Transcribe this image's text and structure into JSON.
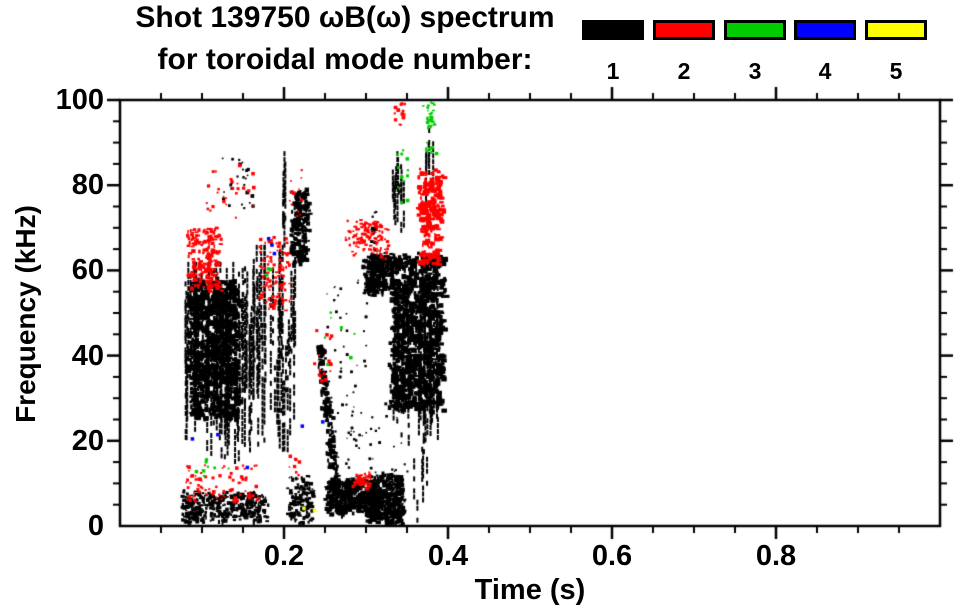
{
  "title": {
    "line1": "Shot 139750 ωB(ω) spectrum",
    "line2": "for toroidal mode number:"
  },
  "legend": {
    "modes": [
      {
        "label": "1",
        "color": "#000000"
      },
      {
        "label": "2",
        "color": "#ff0000"
      },
      {
        "label": "3",
        "color": "#00cc00"
      },
      {
        "label": "4",
        "color": "#0000ff"
      },
      {
        "label": "5",
        "color": "#ffff00"
      }
    ]
  },
  "axes": {
    "x": {
      "label": "Time (s)",
      "min": 0,
      "max": 1.0,
      "tick_values": [
        0.2,
        0.4,
        0.6,
        0.8
      ],
      "tick_labels": [
        "0.2",
        "0.4",
        "0.6",
        "0.8"
      ],
      "minor_interval": 0.05
    },
    "y": {
      "label": "Frequency (kHz)",
      "min": 0,
      "max": 100,
      "tick_values": [
        100,
        80,
        60,
        40,
        20,
        0
      ],
      "tick_labels": [
        "100",
        "80",
        "60",
        "40",
        "20",
        "0"
      ],
      "minor_interval": 5
    }
  },
  "chart_data": {
    "type": "scatter",
    "title": "Shot 139750 ωB(ω) spectrum for toroidal mode number: 1 2 3 4 5",
    "xlabel": "Time (s)",
    "ylabel": "Frequency (kHz)",
    "xlim": [
      0,
      1.0
    ],
    "ylim": [
      0,
      100
    ],
    "grid": false,
    "legend_position": "top-right-above-plot",
    "frame_ticks": "outward, all four sides, minor x every 0.05 s, minor y every 5 kHz",
    "series": [
      {
        "name": "mode n=1",
        "color": "#000000",
        "clusters": [
          {
            "style": "blobs",
            "t": [
              0.077,
              0.176
            ],
            "f": [
              1.5,
              8
            ],
            "n": 200,
            "size": 3
          },
          {
            "style": "blobs",
            "t": [
              0.082,
              0.142
            ],
            "f": [
              26,
              58
            ],
            "n": 450,
            "size": 4
          },
          {
            "style": "vstreaks",
            "t": [
              0.078,
              0.15
            ],
            "f": [
              15,
              62
            ],
            "n": 70,
            "size": 2
          },
          {
            "style": "vstreaks",
            "t": [
              0.15,
              0.213
            ],
            "f": [
              16,
              66
            ],
            "n": 48,
            "size": 2
          },
          {
            "style": "dots",
            "t": [
              0.124,
              0.163
            ],
            "f": [
              74,
              87
            ],
            "n": 26,
            "size": 2.5
          },
          {
            "style": "blobs",
            "t": [
              0.209,
              0.226
            ],
            "f": [
              62,
              79
            ],
            "n": 110,
            "size": 3.5
          },
          {
            "style": "vstreaks",
            "t": [
              0.195,
              0.201
            ],
            "f": [
              64,
              88
            ],
            "n": 6,
            "size": 2
          },
          {
            "style": "blobs",
            "t": [
              0.204,
              0.233
            ],
            "f": [
              1,
              12
            ],
            "n": 70,
            "size": 3
          },
          {
            "style": "diag",
            "t": [
              0.242,
              0.262
            ],
            "f": [
              8,
              42
            ],
            "n": 110,
            "size": 3
          },
          {
            "style": "blobs",
            "t": [
              0.252,
              0.314
            ],
            "f": [
              3,
              11
            ],
            "n": 230,
            "size": 3.5
          },
          {
            "style": "blobs",
            "t": [
              0.303,
              0.345
            ],
            "f": [
              1,
              12
            ],
            "n": 190,
            "size": 3.5
          },
          {
            "style": "dots",
            "t": [
              0.26,
              0.35
            ],
            "f": [
              11,
              30
            ],
            "n": 60,
            "size": 2
          },
          {
            "style": "blobs",
            "t": [
              0.297,
              0.328
            ],
            "f": [
              55,
              64
            ],
            "n": 130,
            "size": 3.5
          },
          {
            "style": "dots",
            "t": [
              0.303,
              0.313
            ],
            "f": [
              64,
              74
            ],
            "n": 16,
            "size": 2.5
          },
          {
            "style": "blobs",
            "t": [
              0.33,
              0.392
            ],
            "f": [
              28,
              64
            ],
            "n": 500,
            "size": 4
          },
          {
            "style": "vstreaks",
            "t": [
              0.332,
              0.39
            ],
            "f": [
              17,
              62
            ],
            "n": 40,
            "size": 2
          },
          {
            "style": "vstreaks",
            "t": [
              0.331,
              0.346
            ],
            "f": [
              69,
              88
            ],
            "n": 14,
            "size": 2
          },
          {
            "style": "dots",
            "t": [
              0.25,
              0.3
            ],
            "f": [
              30,
              58
            ],
            "n": 36,
            "size": 2
          },
          {
            "style": "vstreaks",
            "t": [
              0.355,
              0.387
            ],
            "f": [
              0,
              20
            ],
            "n": 6,
            "size": 2
          },
          {
            "style": "vstreaks",
            "t": [
              0.371,
              0.381
            ],
            "f": [
              72,
              95
            ],
            "n": 5,
            "size": 2
          }
        ]
      },
      {
        "name": "mode n=2",
        "color": "#ff0000",
        "clusters": [
          {
            "style": "dots",
            "t": [
              0.079,
              0.17
            ],
            "f": [
              6,
              14.5
            ],
            "n": 80,
            "size": 2.5
          },
          {
            "style": "blobs",
            "t": [
              0.082,
              0.12
            ],
            "f": [
              56,
              70
            ],
            "n": 110,
            "size": 3
          },
          {
            "style": "dots",
            "t": [
              0.098,
              0.166
            ],
            "f": [
              70,
              86
            ],
            "n": 26,
            "size": 2.5
          },
          {
            "style": "blobs",
            "t": [
              0.168,
              0.206
            ],
            "f": [
              50,
              68.5
            ],
            "n": 60,
            "size": 2.5
          },
          {
            "style": "dots",
            "t": [
              0.205,
              0.223
            ],
            "f": [
              72,
              84
            ],
            "n": 12,
            "size": 2.5
          },
          {
            "style": "dots",
            "t": [
              0.203,
              0.218
            ],
            "f": [
              12,
              17
            ],
            "n": 8,
            "size": 2.5
          },
          {
            "style": "dots",
            "t": [
              0.235,
              0.256
            ],
            "f": [
              34,
              48
            ],
            "n": 18,
            "size": 2.5
          },
          {
            "style": "blobs",
            "t": [
              0.285,
              0.304
            ],
            "f": [
              9.5,
              12.5
            ],
            "n": 26,
            "size": 2.5
          },
          {
            "style": "blobs",
            "t": [
              0.276,
              0.326
            ],
            "f": [
              63.5,
              72
            ],
            "n": 60,
            "size": 2.5
          },
          {
            "style": "blobs",
            "t": [
              0.365,
              0.389
            ],
            "f": [
              62,
              84
            ],
            "n": 130,
            "size": 3.5
          },
          {
            "style": "dots",
            "t": [
              0.333,
              0.346
            ],
            "f": [
              94,
              100
            ],
            "n": 14,
            "size": 2.5
          }
        ]
      },
      {
        "name": "mode n=3",
        "color": "#00cc00",
        "clusters": [
          {
            "style": "dots",
            "t": [
              0.088,
              0.146
            ],
            "f": [
              12,
              17
            ],
            "n": 8,
            "size": 2.5
          },
          {
            "style": "dots",
            "t": [
              0.176,
              0.185
            ],
            "f": [
              57,
              61
            ],
            "n": 5,
            "size": 2.5
          },
          {
            "style": "dots",
            "t": [
              0.244,
              0.285
            ],
            "f": [
              37,
              52
            ],
            "n": 7,
            "size": 2.5
          },
          {
            "style": "dots",
            "t": [
              0.335,
              0.351
            ],
            "f": [
              73,
              89
            ],
            "n": 12,
            "size": 2.5
          },
          {
            "style": "blobs",
            "t": [
              0.371,
              0.381
            ],
            "f": [
              87,
              100
            ],
            "n": 18,
            "size": 2.5
          }
        ]
      },
      {
        "name": "mode n=4",
        "color": "#0000ff",
        "points": [
          [
            0.088,
            20.5
          ],
          [
            0.119,
            21.5
          ],
          [
            0.155,
            13.8
          ],
          [
            0.181,
            67.5
          ],
          [
            0.185,
            66.0
          ],
          [
            0.188,
            64.0
          ],
          [
            0.222,
            23.5
          ],
          [
            0.247,
            24.5
          ]
        ]
      },
      {
        "name": "mode n=5",
        "color": "#ffff00",
        "points": [
          [
            0.224,
            4.2
          ],
          [
            0.237,
            3.7
          ]
        ]
      }
    ]
  }
}
